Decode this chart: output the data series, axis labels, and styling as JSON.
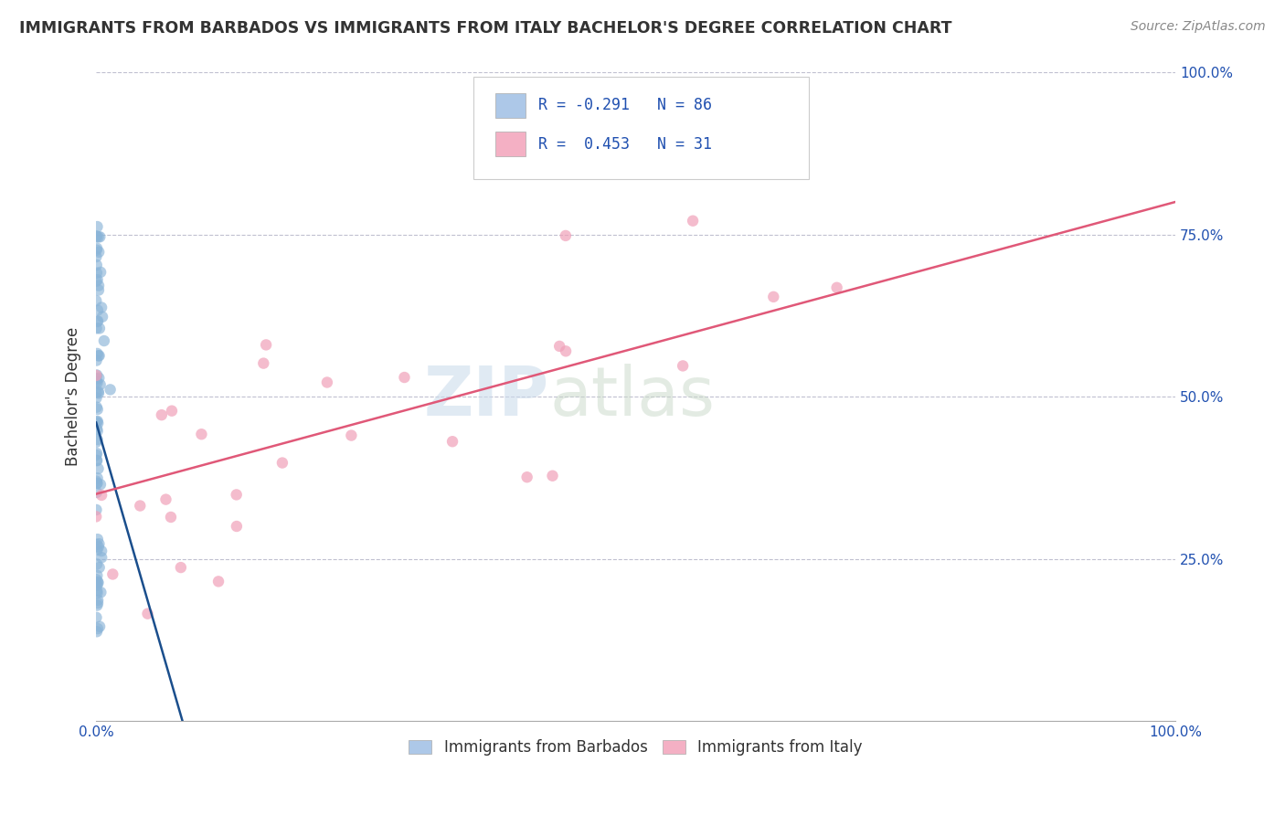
{
  "title": "IMMIGRANTS FROM BARBADOS VS IMMIGRANTS FROM ITALY BACHELOR'S DEGREE CORRELATION CHART",
  "source": "Source: ZipAtlas.com",
  "ylabel": "Bachelor's Degree",
  "xlim": [
    0.0,
    1.0
  ],
  "ylim": [
    0.0,
    1.0
  ],
  "x_tick_labels_bottom": [
    "0.0%",
    "100.0%"
  ],
  "x_tick_positions_bottom": [
    0.0,
    1.0
  ],
  "y_tick_labels_right": [
    "100.0%",
    "75.0%",
    "50.0%",
    "25.0%"
  ],
  "y_tick_positions_right": [
    1.0,
    0.75,
    0.5,
    0.25
  ],
  "barbados_color": "#8ab4d8",
  "italy_color": "#f0a0b8",
  "barbados_line_color": "#1a4e8c",
  "italy_line_color": "#e05878",
  "legend_box_color_barbados": "#adc8e8",
  "legend_box_color_italy": "#f4b0c4",
  "legend_text_color": "#2050b0",
  "watermark_zip": "ZIP",
  "watermark_atlas": "atlas",
  "R_barbados": -0.291,
  "N_barbados": 86,
  "R_italy": 0.453,
  "N_italy": 31,
  "background_color": "#ffffff",
  "grid_color": "#c0c0d0",
  "barbados_line_x0": 0.0,
  "barbados_line_y0": 0.46,
  "barbados_line_x1": 0.08,
  "barbados_line_y1": 0.0,
  "italy_line_x0": 0.0,
  "italy_line_y0": 0.35,
  "italy_line_x1": 1.0,
  "italy_line_y1": 0.8
}
